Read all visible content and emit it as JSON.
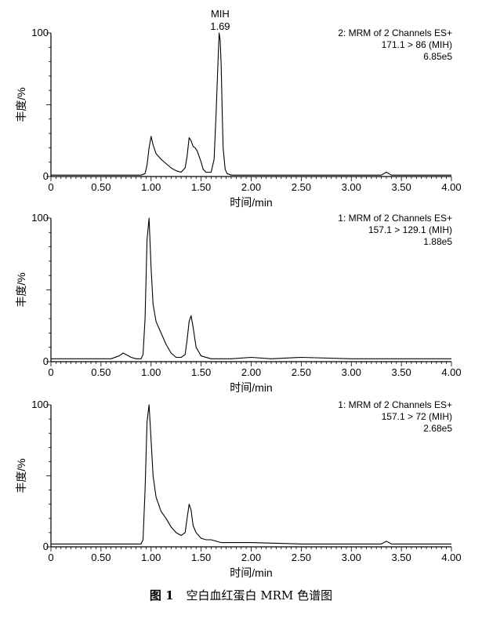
{
  "chart_data": [
    {
      "type": "line",
      "xlabel": "时间/min",
      "ylabel": "丰度/%",
      "xlim": [
        0,
        4.0
      ],
      "ylim": [
        0,
        100
      ],
      "x_ticks": [
        "0",
        "0.50",
        "1.00",
        "1.50",
        "2.00",
        "2.50",
        "3.00",
        "3.50",
        "4.00"
      ],
      "y_ticks": [
        "0",
        "100"
      ],
      "legend": [
        "2: MRM of 2 Channels ES+",
        "171.1 > 86 (MIH)",
        "6.85e5"
      ],
      "peak_label": {
        "name": "MIH",
        "rt": "1.69"
      },
      "series": [
        {
          "x": [
            0,
            0.2,
            0.4,
            0.6,
            0.8,
            0.9,
            0.94,
            0.96,
            0.98,
            1.0,
            1.02,
            1.05,
            1.1,
            1.15,
            1.2,
            1.25,
            1.3,
            1.34,
            1.36,
            1.38,
            1.4,
            1.42,
            1.44,
            1.46,
            1.48,
            1.5,
            1.52,
            1.55,
            1.6,
            1.63,
            1.65,
            1.67,
            1.68,
            1.69,
            1.7,
            1.71,
            1.72,
            1.74,
            1.76,
            1.8,
            2.0,
            2.5,
            3.0,
            3.3,
            3.35,
            3.4,
            3.5,
            4.0
          ],
          "y": [
            1,
            1,
            1,
            1,
            1,
            1,
            2,
            8,
            20,
            28,
            22,
            16,
            12,
            9,
            6,
            4,
            3,
            6,
            14,
            27,
            25,
            21,
            20,
            18,
            14,
            10,
            5,
            3,
            3,
            12,
            45,
            82,
            100,
            95,
            78,
            45,
            20,
            5,
            2,
            1,
            1,
            1,
            1,
            1,
            3,
            1,
            1,
            1
          ]
        }
      ]
    },
    {
      "type": "line",
      "xlabel": "时间/min",
      "ylabel": "丰度/%",
      "xlim": [
        0,
        4.0
      ],
      "ylim": [
        0,
        100
      ],
      "x_ticks": [
        "0",
        "0.50",
        "1.00",
        "1.50",
        "2.00",
        "2.50",
        "3.00",
        "3.50",
        "4.00"
      ],
      "y_ticks": [
        "0",
        "100"
      ],
      "legend": [
        "1: MRM of 2 Channels ES+",
        "157.1 > 129.1 (MIH)",
        "1.88e5"
      ],
      "series": [
        {
          "x": [
            0,
            0.2,
            0.4,
            0.6,
            0.68,
            0.72,
            0.75,
            0.8,
            0.85,
            0.9,
            0.92,
            0.94,
            0.96,
            0.98,
            1.0,
            1.02,
            1.05,
            1.1,
            1.15,
            1.2,
            1.25,
            1.3,
            1.34,
            1.36,
            1.38,
            1.4,
            1.42,
            1.45,
            1.5,
            1.6,
            1.8,
            2.0,
            2.2,
            2.5,
            3.0,
            3.5,
            4.0
          ],
          "y": [
            2,
            2,
            2,
            2,
            4,
            6,
            5,
            3,
            2,
            2,
            5,
            30,
            85,
            100,
            65,
            40,
            28,
            20,
            12,
            6,
            3,
            3,
            5,
            15,
            28,
            32,
            24,
            10,
            4,
            2,
            2,
            3,
            2,
            3,
            2,
            2,
            2
          ]
        }
      ]
    },
    {
      "type": "line",
      "xlabel": "时间/min",
      "ylabel": "丰度/%",
      "xlim": [
        0,
        4.0
      ],
      "ylim": [
        0,
        100
      ],
      "x_ticks": [
        "0",
        "0.50",
        "1.00",
        "1.50",
        "2.00",
        "2.50",
        "3.00",
        "3.50",
        "4.00"
      ],
      "y_ticks": [
        "0",
        "100"
      ],
      "legend": [
        "1: MRM of 2 Channels ES+",
        "157.1 > 72 (MIH)",
        "2.68e5"
      ],
      "series": [
        {
          "x": [
            0,
            0.3,
            0.6,
            0.8,
            0.9,
            0.92,
            0.94,
            0.96,
            0.98,
            1.0,
            1.02,
            1.05,
            1.1,
            1.15,
            1.2,
            1.25,
            1.3,
            1.34,
            1.36,
            1.38,
            1.4,
            1.42,
            1.45,
            1.5,
            1.55,
            1.6,
            1.7,
            2.0,
            2.5,
            3.0,
            3.3,
            3.35,
            3.4,
            3.5,
            4.0
          ],
          "y": [
            2,
            2,
            2,
            2,
            2,
            5,
            40,
            88,
            100,
            75,
            50,
            35,
            25,
            20,
            14,
            10,
            8,
            10,
            20,
            30,
            26,
            15,
            10,
            6,
            5,
            5,
            3,
            3,
            2,
            2,
            2,
            4,
            2,
            2,
            2
          ]
        }
      ]
    }
  ],
  "caption": {
    "label": "图 1",
    "text": "空白血红蛋白 MRM 色谱图"
  }
}
